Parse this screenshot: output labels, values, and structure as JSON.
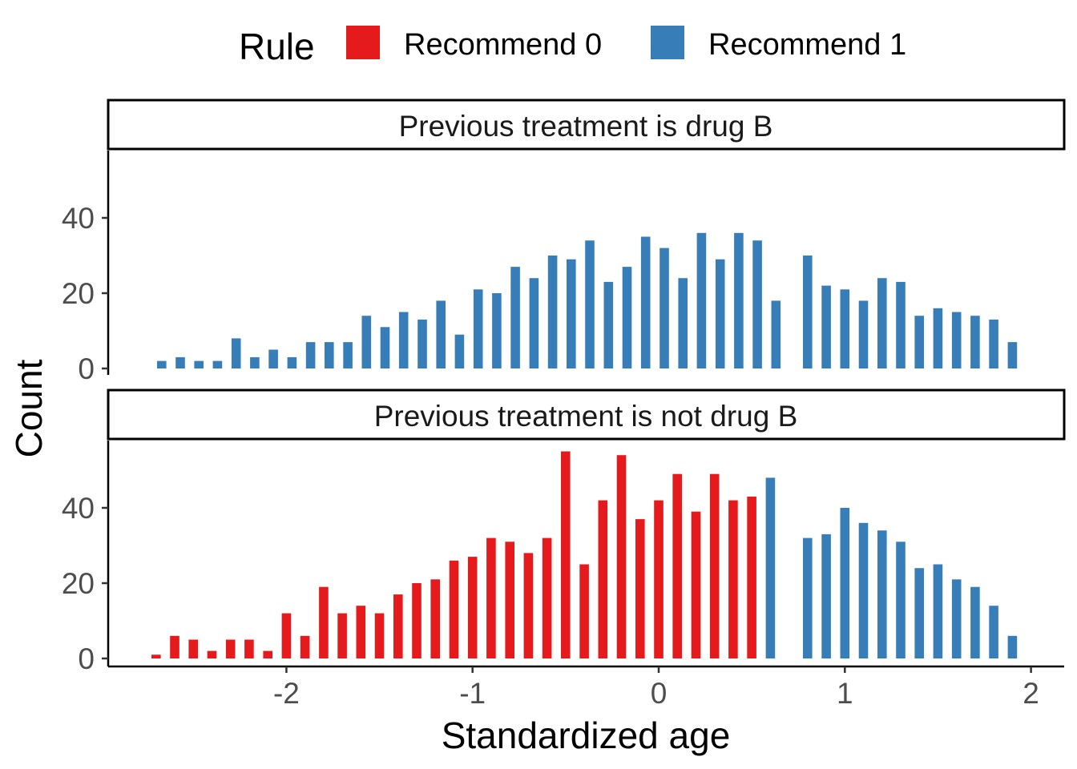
{
  "chart_data": {
    "type": "bar",
    "legend": {
      "title": "Rule",
      "position": "top",
      "entries": [
        {
          "label": "Recommend 0",
          "color": "#E41A1C"
        },
        {
          "label": "Recommend 1",
          "color": "#377EB8"
        }
      ]
    },
    "xlabel": "Standardized age",
    "ylabel": "Count",
    "xlim": [
      -2.78,
      2.17
    ],
    "x_ticks": [
      -2,
      -1,
      0,
      1,
      2
    ],
    "x_tick_labels": [
      "-2",
      "-1",
      "0",
      "1",
      "2"
    ],
    "ylim": [
      0,
      58
    ],
    "y_ticks": [
      0,
      20,
      40
    ],
    "y_tick_labels": [
      "0",
      "20",
      "40"
    ],
    "grid": false,
    "bar_width": 0.05,
    "panels": [
      {
        "strip": "Previous treatment is drug B",
        "x": [
          -2.67,
          -2.57,
          -2.47,
          -2.37,
          -2.27,
          -2.17,
          -2.07,
          -1.97,
          -1.87,
          -1.77,
          -1.67,
          -1.57,
          -1.47,
          -1.37,
          -1.27,
          -1.17,
          -1.07,
          -0.97,
          -0.87,
          -0.77,
          -0.67,
          -0.57,
          -0.47,
          -0.37,
          -0.27,
          -0.17,
          -0.07,
          0.03,
          0.13,
          0.23,
          0.33,
          0.43,
          0.53,
          0.63,
          0.8,
          0.9,
          1.0,
          1.1,
          1.2,
          1.3,
          1.4,
          1.5,
          1.6,
          1.7,
          1.8,
          1.9
        ],
        "values": [
          2,
          3,
          2,
          2,
          8,
          3,
          5,
          3,
          7,
          7,
          7,
          14,
          11,
          15,
          13,
          18,
          9,
          21,
          20,
          27,
          24,
          30,
          29,
          34,
          23,
          27,
          35,
          32,
          24,
          36,
          29,
          36,
          34,
          18,
          30,
          22,
          21,
          18,
          24,
          23,
          14,
          16,
          15,
          14,
          13,
          7
        ],
        "groups": [
          1,
          1,
          1,
          1,
          1,
          1,
          1,
          1,
          1,
          1,
          1,
          1,
          1,
          1,
          1,
          1,
          1,
          1,
          1,
          1,
          1,
          1,
          1,
          1,
          1,
          1,
          1,
          1,
          1,
          1,
          1,
          1,
          1,
          1,
          1,
          1,
          1,
          1,
          1,
          1,
          1,
          1,
          1,
          1,
          1,
          1
        ]
      },
      {
        "strip": "Previous treatment is not drug B",
        "x": [
          -2.7,
          -2.6,
          -2.5,
          -2.4,
          -2.3,
          -2.2,
          -2.1,
          -2.0,
          -1.9,
          -1.8,
          -1.7,
          -1.6,
          -1.5,
          -1.4,
          -1.3,
          -1.2,
          -1.1,
          -1.0,
          -0.9,
          -0.8,
          -0.7,
          -0.6,
          -0.5,
          -0.4,
          -0.3,
          -0.2,
          -0.1,
          0.0,
          0.1,
          0.2,
          0.3,
          0.4,
          0.5,
          0.6,
          0.8,
          0.9,
          1.0,
          1.1,
          1.2,
          1.3,
          1.4,
          1.5,
          1.6,
          1.7,
          1.8,
          1.9
        ],
        "values": [
          1,
          6,
          5,
          2,
          5,
          5,
          2,
          12,
          6,
          19,
          12,
          14,
          12,
          17,
          20,
          21,
          26,
          27,
          32,
          31,
          28,
          32,
          55,
          25,
          42,
          54,
          37,
          42,
          49,
          39,
          49,
          42,
          43,
          48,
          32,
          33,
          40,
          36,
          34,
          31,
          24,
          25,
          21,
          19,
          14,
          6
        ],
        "groups": [
          0,
          0,
          0,
          0,
          0,
          0,
          0,
          0,
          0,
          0,
          0,
          0,
          0,
          0,
          0,
          0,
          0,
          0,
          0,
          0,
          0,
          0,
          0,
          0,
          0,
          0,
          0,
          0,
          0,
          0,
          0,
          0,
          0,
          1,
          1,
          1,
          1,
          1,
          1,
          1,
          1,
          1,
          1,
          1,
          1,
          1
        ]
      }
    ]
  }
}
